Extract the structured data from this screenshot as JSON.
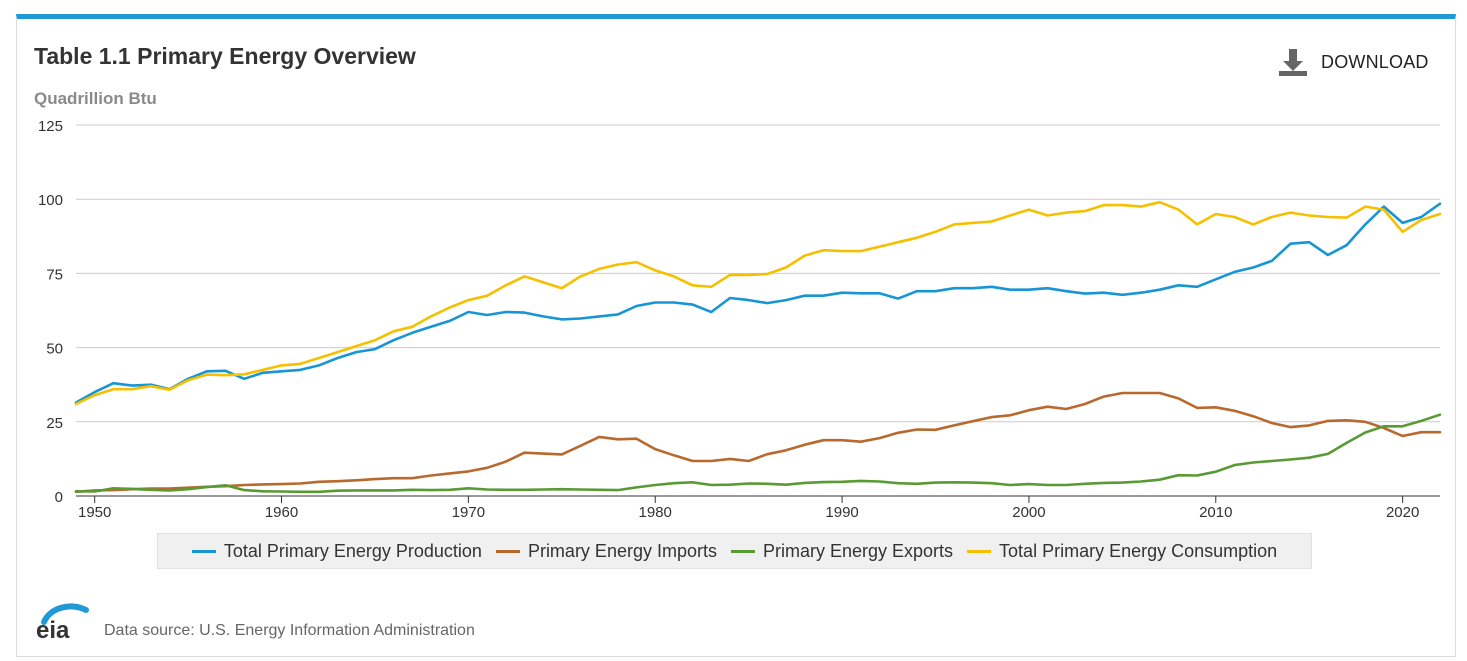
{
  "header": {
    "title": "Table 1.1 Primary Energy Overview",
    "units": "Quadrillion Btu",
    "download_label": "DOWNLOAD"
  },
  "footer": {
    "logo_text": "eia",
    "source": "Data source: U.S. Energy Information Administration"
  },
  "colors": {
    "accent": "#1f9ad6",
    "production": "#1795d4",
    "imports": "#b8692d",
    "exports": "#5a9a35",
    "consumption": "#f5c000",
    "grid": "#cccccc"
  },
  "chart_data": {
    "type": "line",
    "title": "Table 1.1 Primary Energy Overview",
    "ylabel": "Quadrillion Btu",
    "xlabel": "",
    "xlim": [
      1949,
      2022
    ],
    "ylim": [
      0,
      125
    ],
    "xticks": [
      1950,
      1960,
      1970,
      1980,
      1990,
      2000,
      2010,
      2020
    ],
    "yticks": [
      0,
      25,
      50,
      75,
      100,
      125
    ],
    "grid": true,
    "legend": "bottom",
    "x": [
      1949,
      1950,
      1951,
      1952,
      1953,
      1954,
      1955,
      1956,
      1957,
      1958,
      1959,
      1960,
      1961,
      1962,
      1963,
      1964,
      1965,
      1966,
      1967,
      1968,
      1969,
      1970,
      1971,
      1972,
      1973,
      1974,
      1975,
      1976,
      1977,
      1978,
      1979,
      1980,
      1981,
      1982,
      1983,
      1984,
      1985,
      1986,
      1987,
      1988,
      1989,
      1990,
      1991,
      1992,
      1993,
      1994,
      1995,
      1996,
      1997,
      1998,
      1999,
      2000,
      2001,
      2002,
      2003,
      2004,
      2005,
      2006,
      2007,
      2008,
      2009,
      2010,
      2011,
      2012,
      2013,
      2014,
      2015,
      2016,
      2017,
      2018,
      2019,
      2020,
      2021,
      2022
    ],
    "series": [
      {
        "name": "Total Primary Energy Production",
        "color": "#1795d4",
        "values": [
          31.5,
          35.0,
          38.0,
          37.2,
          37.5,
          36.0,
          39.5,
          42.0,
          42.2,
          39.5,
          41.5,
          42.0,
          42.5,
          44.0,
          46.5,
          48.5,
          49.5,
          52.5,
          55.0,
          57.0,
          59.0,
          62.0,
          61.0,
          62.0,
          61.8,
          60.5,
          59.5,
          59.8,
          60.5,
          61.2,
          64.0,
          65.2,
          65.2,
          64.5,
          62.0,
          66.7,
          66.0,
          65.0,
          66.0,
          67.5,
          67.5,
          68.5,
          68.3,
          68.3,
          66.5,
          69.0,
          69.0,
          70.0,
          70.0,
          70.5,
          69.5,
          69.5,
          70.0,
          69.0,
          68.2,
          68.5,
          67.8,
          68.5,
          69.5,
          71.0,
          70.5,
          73.0,
          75.5,
          77.0,
          79.2,
          85.0,
          85.5,
          81.2,
          84.5,
          91.5,
          97.5,
          92.0,
          94.0,
          98.5
        ]
      },
      {
        "name": "Primary Energy Imports",
        "color": "#b8692d",
        "values": [
          1.4,
          1.9,
          2.0,
          2.3,
          2.5,
          2.5,
          2.8,
          3.1,
          3.3,
          3.7,
          3.9,
          4.0,
          4.2,
          4.8,
          5.0,
          5.3,
          5.7,
          6.0,
          6.0,
          6.9,
          7.6,
          8.3,
          9.5,
          11.6,
          14.6,
          14.3,
          14.0,
          16.9,
          19.9,
          19.1,
          19.3,
          15.8,
          13.7,
          11.8,
          11.8,
          12.5,
          11.8,
          14.1,
          15.4,
          17.3,
          18.8,
          18.8,
          18.3,
          19.5,
          21.3,
          22.4,
          22.3,
          23.8,
          25.2,
          26.6,
          27.2,
          28.9,
          30.1,
          29.3,
          31.0,
          33.5,
          34.7,
          34.7,
          34.7,
          32.9,
          29.7,
          29.9,
          28.7,
          26.9,
          24.6,
          23.2,
          23.8,
          25.3,
          25.5,
          25.0,
          22.9,
          20.2,
          21.5,
          21.5
        ]
      },
      {
        "name": "Primary Energy Exports",
        "color": "#5a9a35",
        "values": [
          1.6,
          1.5,
          2.6,
          2.4,
          2.1,
          1.9,
          2.3,
          3.0,
          3.6,
          2.0,
          1.6,
          1.5,
          1.4,
          1.4,
          1.8,
          1.9,
          1.9,
          1.9,
          2.1,
          2.0,
          2.1,
          2.6,
          2.2,
          2.1,
          2.1,
          2.2,
          2.3,
          2.2,
          2.1,
          2.0,
          2.9,
          3.7,
          4.3,
          4.6,
          3.7,
          3.8,
          4.2,
          4.1,
          3.8,
          4.4,
          4.7,
          4.8,
          5.1,
          4.9,
          4.3,
          4.1,
          4.5,
          4.6,
          4.5,
          4.3,
          3.7,
          4.0,
          3.7,
          3.7,
          4.1,
          4.4,
          4.5,
          4.9,
          5.5,
          7.0,
          6.9,
          8.2,
          10.4,
          11.3,
          11.8,
          12.3,
          12.9,
          14.2,
          17.9,
          21.4,
          23.5,
          23.5,
          25.3,
          27.4
        ]
      },
      {
        "name": "Total Primary Energy Consumption",
        "color": "#f5c000",
        "values": [
          31.0,
          34.0,
          36.0,
          36.0,
          37.0,
          35.8,
          39.0,
          40.9,
          40.7,
          41.0,
          42.5,
          44.0,
          44.5,
          46.5,
          48.5,
          50.5,
          52.5,
          55.5,
          57.0,
          60.5,
          63.5,
          66.0,
          67.5,
          71.0,
          74.0,
          72.0,
          70.0,
          74.0,
          76.5,
          78.0,
          78.8,
          76.0,
          74.0,
          71.0,
          70.5,
          74.5,
          74.5,
          74.8,
          77.0,
          81.0,
          82.8,
          82.5,
          82.5,
          84.0,
          85.5,
          87.0,
          89.0,
          91.5,
          92.0,
          92.5,
          94.5,
          96.5,
          94.5,
          95.5,
          96.0,
          98.0,
          98.0,
          97.5,
          99.0,
          96.5,
          91.5,
          95.0,
          94.0,
          91.5,
          94.0,
          95.5,
          94.5,
          94.0,
          93.8,
          97.5,
          96.5,
          89.0,
          93.0,
          95.0
        ]
      }
    ]
  }
}
